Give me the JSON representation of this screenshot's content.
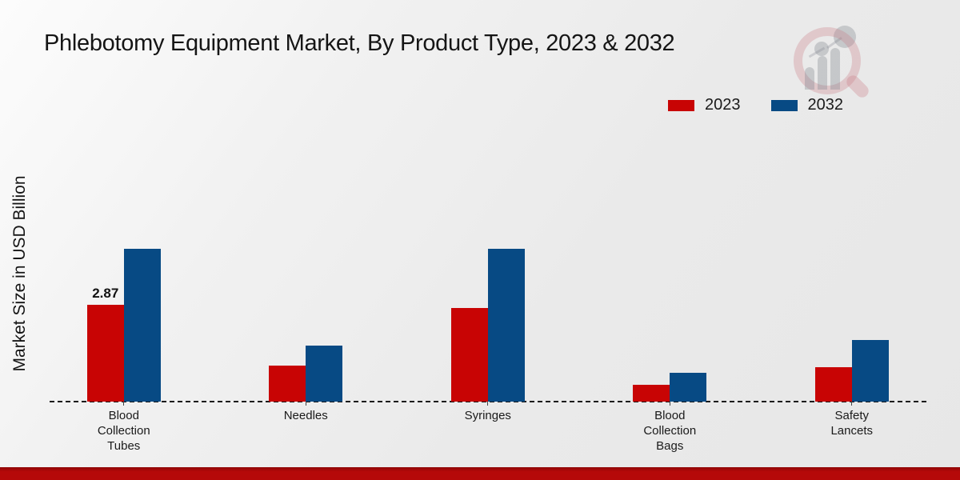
{
  "title": "Phlebotomy Equipment Market, By Product Type, 2023 & 2032",
  "y_axis_label": "Market Size in USD Billion",
  "legend": {
    "position": "top-right",
    "items": [
      {
        "label": "2023",
        "color": "#c80404"
      },
      {
        "label": "2032",
        "color": "#074a84"
      }
    ]
  },
  "chart_data": {
    "type": "bar",
    "title": "Phlebotomy Equipment Market, By Product Type, 2023 & 2032",
    "xlabel": "",
    "ylabel": "Market Size in USD Billion",
    "categories": [
      "Blood Collection Tubes",
      "Needles",
      "Syringes",
      "Blood Collection Bags",
      "Safety Lancets"
    ],
    "series": [
      {
        "name": "2023",
        "color": "#c80404",
        "values": [
          2.87,
          1.07,
          2.78,
          0.5,
          1.02
        ],
        "data_labels": [
          "2.87",
          "",
          "",
          "",
          ""
        ]
      },
      {
        "name": "2032",
        "color": "#074a84",
        "values": [
          4.53,
          1.66,
          4.53,
          0.85,
          1.83
        ],
        "data_labels": [
          "",
          "",
          "",
          "",
          ""
        ]
      }
    ],
    "ylim": [
      0,
      5
    ],
    "y_axis_ticks_visible": false,
    "grid": false,
    "baseline_style": "dashed"
  },
  "watermark": {
    "name": "market-research-future-logo"
  },
  "footer": {
    "bar_color": "#b50909"
  }
}
